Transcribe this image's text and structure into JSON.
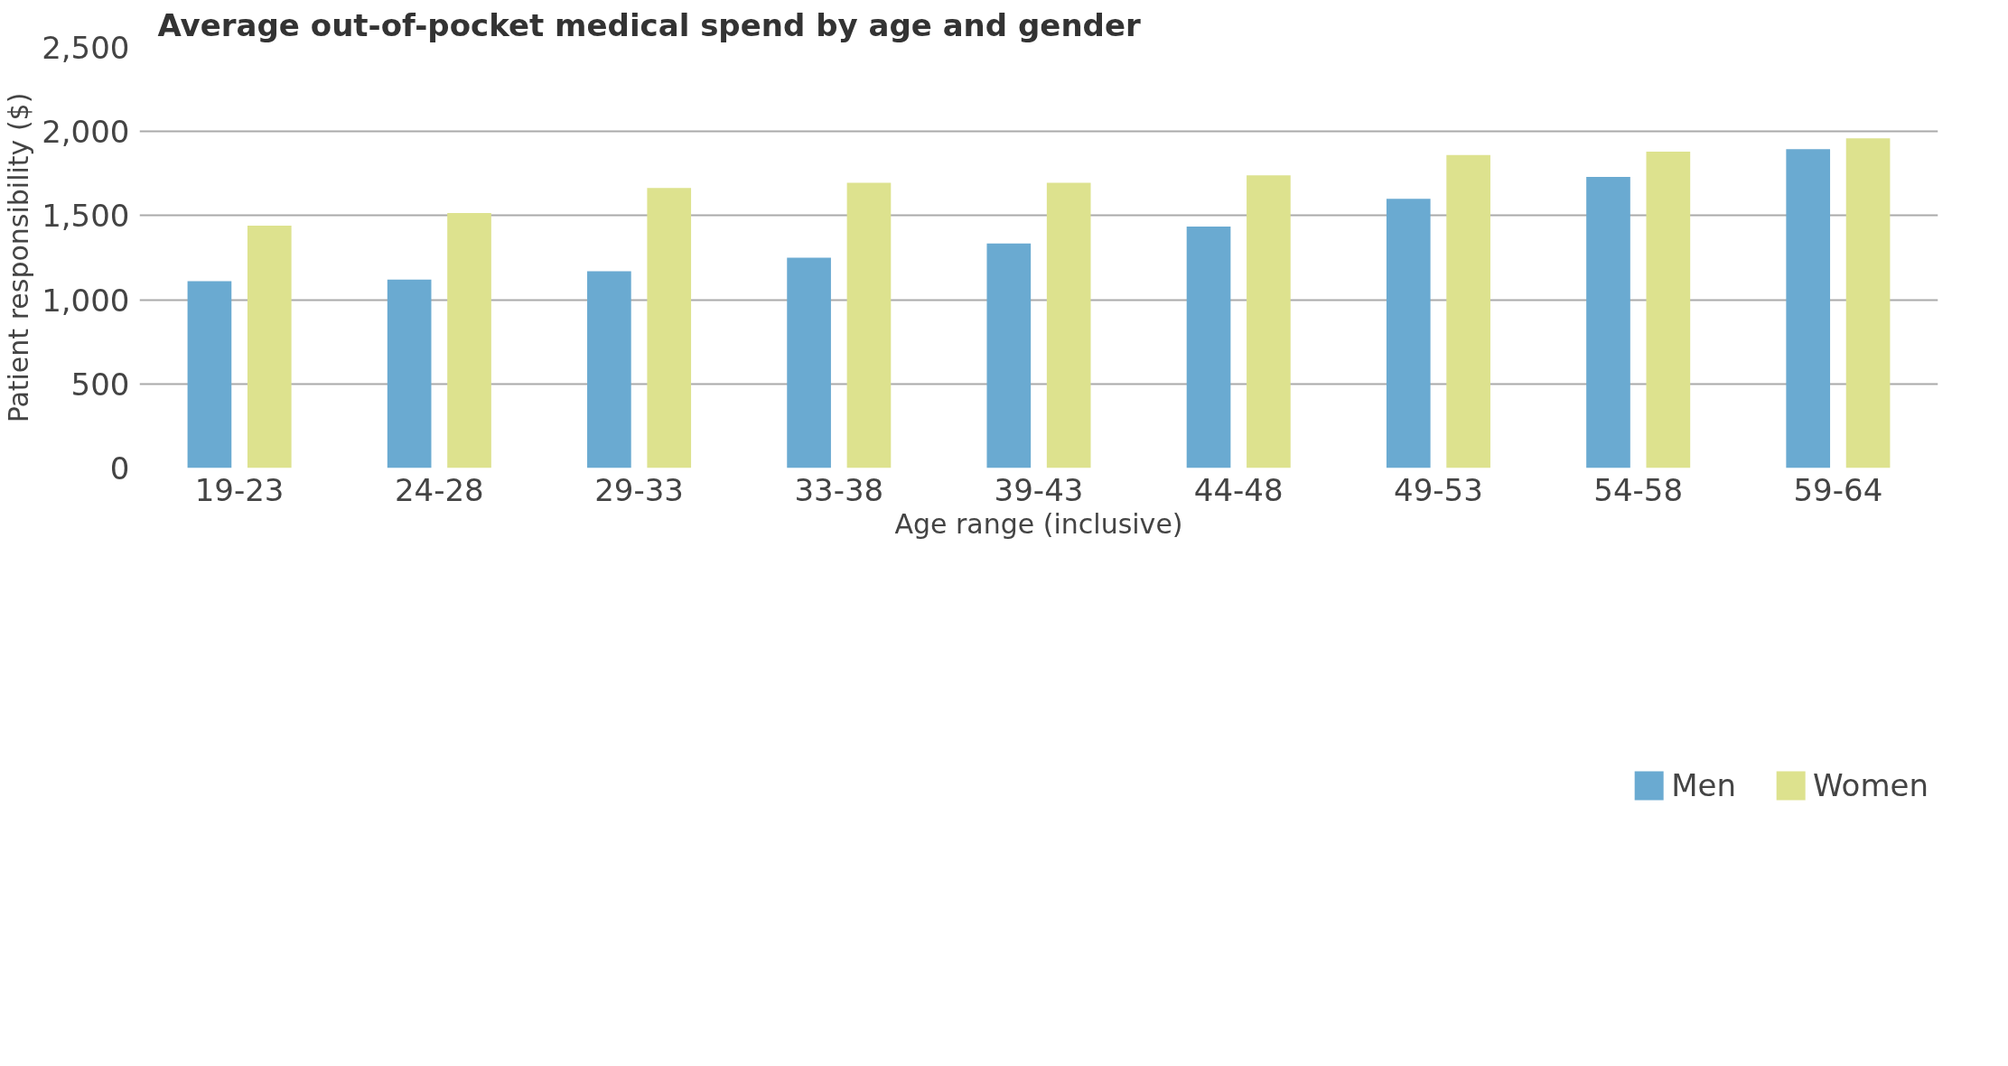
{
  "chart_data": {
    "type": "bar",
    "title": "Average out-of-pocket medical spend by age and gender",
    "xlabel": "Age range (inclusive)",
    "ylabel": "Patient responsibility ($)",
    "categories": [
      "19-23",
      "24-28",
      "29-33",
      "33-38",
      "39-43",
      "44-48",
      "49-53",
      "54-58",
      "59-64"
    ],
    "series": [
      {
        "name": "Men",
        "color": "#6aaad1",
        "values": [
          1110,
          1120,
          1170,
          1250,
          1335,
          1435,
          1600,
          1730,
          1895
        ]
      },
      {
        "name": "Women",
        "color": "#dde28e",
        "values": [
          1440,
          1515,
          1665,
          1695,
          1695,
          1740,
          1860,
          1880,
          1960
        ]
      }
    ],
    "ylim": [
      0,
      2500
    ],
    "yticks": [
      0,
      {
        "value": 500,
        "label": "500"
      },
      {
        "value": 1000,
        "label": "1,000"
      },
      {
        "value": 1500,
        "label": "1,500"
      },
      {
        "value": 2000,
        "label": "2,000"
      },
      {
        "value": 2500,
        "label": "2,500"
      }
    ],
    "grid": "y",
    "legend": "bottom"
  }
}
